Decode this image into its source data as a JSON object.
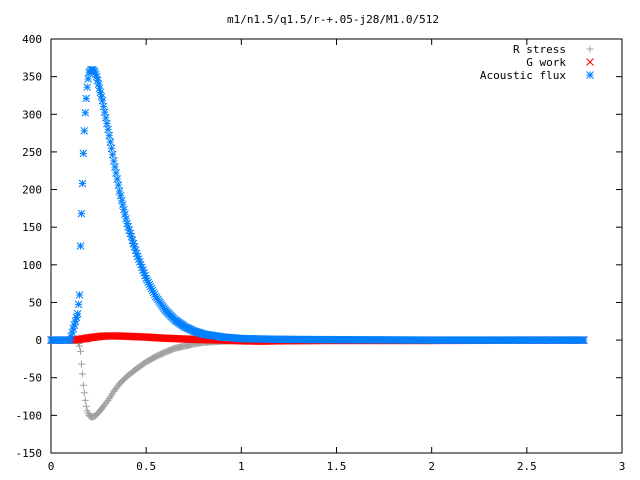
{
  "chart_data": {
    "type": "scatter",
    "title": "m1/n1.5/q1.5/r-+.05-j28/M1.0/512",
    "xlabel": "",
    "ylabel": "",
    "xlim": [
      0,
      3
    ],
    "ylim": [
      -150,
      400
    ],
    "x_ticks": [
      "0",
      "0.5",
      "1",
      "1.5",
      "2",
      "2.5",
      "3"
    ],
    "y_ticks": [
      "400",
      "350",
      "300",
      "250",
      "200",
      "150",
      "100",
      "50",
      "0",
      "-50",
      "-100",
      "-150"
    ],
    "legend_position": "top-right",
    "grid": false,
    "series": [
      {
        "name": "R stress",
        "marker": "plus",
        "color": "#a0a0a0",
        "points": [
          [
            0,
            0
          ],
          [
            0.1,
            0
          ],
          [
            0.14,
            -1
          ],
          [
            0.15,
            -8
          ],
          [
            0.155,
            -15
          ],
          [
            0.16,
            -32
          ],
          [
            0.165,
            -45
          ],
          [
            0.17,
            -60
          ],
          [
            0.175,
            -70
          ],
          [
            0.18,
            -80
          ],
          [
            0.185,
            -88
          ],
          [
            0.19,
            -94
          ],
          [
            0.195,
            -97
          ],
          [
            0.2,
            -100
          ],
          [
            0.21,
            -102
          ],
          [
            0.22,
            -102
          ],
          [
            0.23,
            -101
          ],
          [
            0.24,
            -99
          ],
          [
            0.25,
            -96
          ],
          [
            0.27,
            -90
          ],
          [
            0.3,
            -80
          ],
          [
            0.33,
            -68
          ],
          [
            0.36,
            -58
          ],
          [
            0.4,
            -48
          ],
          [
            0.45,
            -38
          ],
          [
            0.5,
            -29
          ],
          [
            0.55,
            -22
          ],
          [
            0.6,
            -16
          ],
          [
            0.65,
            -11
          ],
          [
            0.7,
            -8
          ],
          [
            0.75,
            -5
          ],
          [
            0.8,
            -3
          ],
          [
            0.9,
            -1.5
          ],
          [
            1.0,
            -0.5
          ],
          [
            1.2,
            0
          ],
          [
            1.5,
            0
          ],
          [
            2.0,
            0
          ],
          [
            2.5,
            0
          ],
          [
            2.8,
            0
          ]
        ]
      },
      {
        "name": "G work",
        "marker": "cross",
        "color": "#ff0000",
        "points": [
          [
            0,
            0
          ],
          [
            0.1,
            0
          ],
          [
            0.15,
            1
          ],
          [
            0.18,
            2
          ],
          [
            0.2,
            3
          ],
          [
            0.23,
            4
          ],
          [
            0.26,
            5
          ],
          [
            0.3,
            5.5
          ],
          [
            0.35,
            5.5
          ],
          [
            0.4,
            5
          ],
          [
            0.45,
            4.5
          ],
          [
            0.5,
            4
          ],
          [
            0.55,
            3.2
          ],
          [
            0.6,
            2.5
          ],
          [
            0.7,
            1.5
          ],
          [
            0.8,
            0.5
          ],
          [
            0.9,
            0
          ],
          [
            1.0,
            -1
          ],
          [
            1.1,
            -1.5
          ],
          [
            1.2,
            -1
          ],
          [
            1.5,
            -0.5
          ],
          [
            2.0,
            -0.5
          ],
          [
            2.5,
            0
          ],
          [
            2.8,
            0
          ]
        ]
      },
      {
        "name": "Acoustic flux",
        "marker": "star",
        "color": "#0080ff",
        "points": [
          [
            0,
            0
          ],
          [
            0.1,
            0
          ],
          [
            0.14,
            35
          ],
          [
            0.15,
            60
          ],
          [
            0.155,
            125
          ],
          [
            0.16,
            168
          ],
          [
            0.165,
            208
          ],
          [
            0.17,
            248
          ],
          [
            0.175,
            278
          ],
          [
            0.18,
            302
          ],
          [
            0.185,
            321
          ],
          [
            0.19,
            336
          ],
          [
            0.195,
            347
          ],
          [
            0.2,
            355
          ],
          [
            0.21,
            359
          ],
          [
            0.22,
            359
          ],
          [
            0.23,
            356
          ],
          [
            0.24,
            350
          ],
          [
            0.25,
            340
          ],
          [
            0.27,
            318
          ],
          [
            0.3,
            280
          ],
          [
            0.33,
            238
          ],
          [
            0.36,
            198
          ],
          [
            0.4,
            155
          ],
          [
            0.45,
            115
          ],
          [
            0.5,
            82
          ],
          [
            0.55,
            58
          ],
          [
            0.6,
            40
          ],
          [
            0.65,
            27
          ],
          [
            0.7,
            18
          ],
          [
            0.75,
            12
          ],
          [
            0.8,
            8
          ],
          [
            0.9,
            4
          ],
          [
            1.0,
            2
          ],
          [
            1.2,
            1
          ],
          [
            1.5,
            0.5
          ],
          [
            2.0,
            0
          ],
          [
            2.5,
            0
          ],
          [
            2.8,
            0
          ]
        ]
      }
    ]
  }
}
